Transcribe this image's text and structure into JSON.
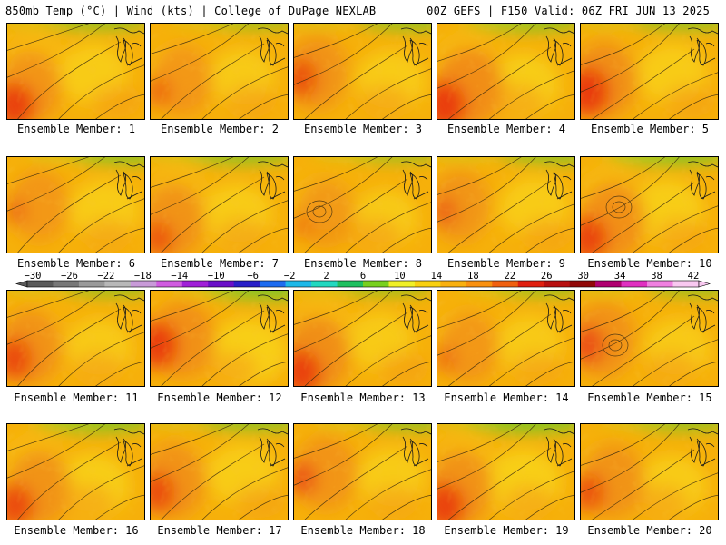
{
  "header": {
    "left": "850mb Temp (°C) | Wind (kts) | College of DuPage NEXLAB",
    "right": "00Z GEFS | F150 Valid: 06Z FRI JUN 13 2025"
  },
  "caption_prefix": "Ensemble Member:",
  "members": [
    {
      "id": "1",
      "heat": 0.55,
      "cool": 0.55,
      "blob": 0.85
    },
    {
      "id": "2",
      "heat": 0.4,
      "cool": 0.4,
      "blob": 0.3
    },
    {
      "id": "3",
      "heat": 0.6,
      "cool": 0.55,
      "blob": 0.6
    },
    {
      "id": "4",
      "heat": 0.85,
      "cool": 0.65,
      "blob": 0.95
    },
    {
      "id": "5",
      "heat": 0.75,
      "cool": 0.55,
      "blob": 0.95
    },
    {
      "id": "6",
      "heat": 0.4,
      "cool": 0.6,
      "blob": 0.2
    },
    {
      "id": "7",
      "heat": 0.6,
      "cool": 0.6,
      "blob": 0.5
    },
    {
      "id": "8",
      "heat": 0.3,
      "cool": 0.35,
      "blob": 0.1
    },
    {
      "id": "9",
      "heat": 0.45,
      "cool": 0.55,
      "blob": 0.3
    },
    {
      "id": "10",
      "heat": 0.7,
      "cool": 0.7,
      "blob": 0.8
    },
    {
      "id": "11",
      "heat": 0.65,
      "cool": 0.45,
      "blob": 0.7
    },
    {
      "id": "12",
      "heat": 0.7,
      "cool": 0.85,
      "blob": 0.9
    },
    {
      "id": "13",
      "heat": 0.75,
      "cool": 0.4,
      "blob": 0.85
    },
    {
      "id": "14",
      "heat": 0.4,
      "cool": 0.45,
      "blob": 0.2
    },
    {
      "id": "15",
      "heat": 0.65,
      "cool": 0.45,
      "blob": 0.6
    },
    {
      "id": "16",
      "heat": 0.6,
      "cool": 0.7,
      "blob": 0.75
    },
    {
      "id": "17",
      "heat": 0.65,
      "cool": 0.6,
      "blob": 0.65
    },
    {
      "id": "18",
      "heat": 0.55,
      "cool": 0.5,
      "blob": 0.5
    },
    {
      "id": "19",
      "heat": 0.65,
      "cool": 0.8,
      "blob": 0.85
    },
    {
      "id": "20",
      "heat": 0.6,
      "cool": 0.55,
      "blob": 0.6
    }
  ],
  "colorbar": {
    "labels": [
      "−30",
      "−26",
      "−22",
      "−18",
      "−14",
      "−10",
      "−6",
      "−2",
      "2",
      "6",
      "10",
      "14",
      "18",
      "22",
      "26",
      "30",
      "34",
      "38",
      "42"
    ],
    "colors": [
      "#5a5a5a",
      "#787878",
      "#9a9a9a",
      "#b8b8b8",
      "#c89ad8",
      "#d05ce0",
      "#a020d8",
      "#6a10c8",
      "#2a20c8",
      "#1e6cf0",
      "#1eb8e8",
      "#22d8c0",
      "#20c060",
      "#78d020",
      "#f0f028",
      "#f8d010",
      "#f8b010",
      "#f89010",
      "#f06010",
      "#e02010",
      "#b81010",
      "#900808",
      "#b00070",
      "#e030c0",
      "#f080e0",
      "#f8c8f0"
    ]
  }
}
